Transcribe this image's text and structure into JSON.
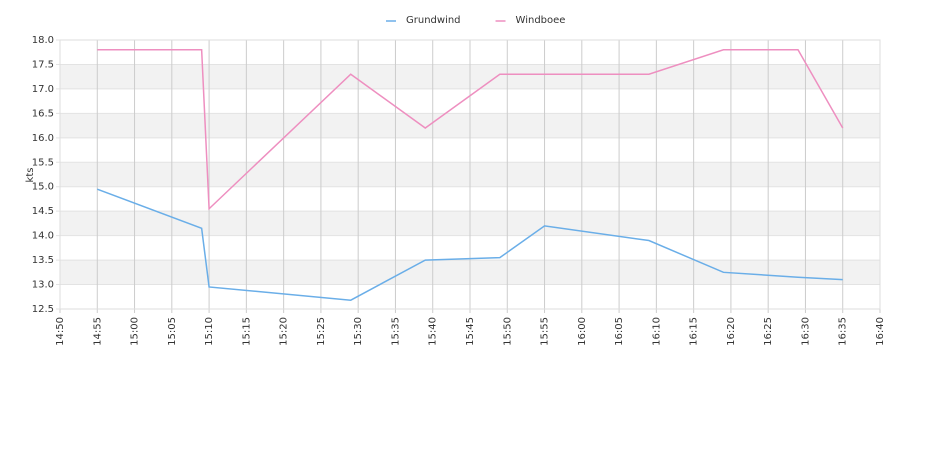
{
  "chart_data": {
    "type": "line",
    "y_label": "kts",
    "x": [
      "14:55",
      "15:09",
      "15:10",
      "15:29",
      "15:39",
      "15:49",
      "15:55",
      "16:09",
      "16:19",
      "16:29",
      "16:35"
    ],
    "series": [
      {
        "name": "Grundwind",
        "color": "#6aaee8",
        "values": [
          14.95,
          14.15,
          12.95,
          12.68,
          13.5,
          13.55,
          14.2,
          13.9,
          13.25,
          13.15,
          13.1
        ]
      },
      {
        "name": "Windboee",
        "color": "#ee8fc0",
        "values": [
          17.8,
          17.8,
          14.55,
          17.3,
          16.2,
          17.3,
          17.3,
          17.3,
          17.8,
          17.8,
          16.2
        ]
      }
    ],
    "xlim": [
      "14:50",
      "16:40"
    ],
    "xticks": [
      "14:50",
      "14:55",
      "15:00",
      "15:05",
      "15:10",
      "15:15",
      "15:20",
      "15:25",
      "15:30",
      "15:35",
      "15:40",
      "15:45",
      "15:50",
      "15:55",
      "16:00",
      "16:05",
      "16:10",
      "16:15",
      "16:20",
      "16:25",
      "16:30",
      "16:35",
      "16:40"
    ],
    "ylim": [
      12.5,
      18
    ],
    "yticks": [
      12.5,
      {
        "value": 13,
        "label": "13.0"
      },
      13.5,
      {
        "value": 14,
        "label": "14.0"
      },
      14.5,
      {
        "value": 15,
        "label": "15.0"
      },
      15.5,
      {
        "value": 16,
        "label": "16.0"
      },
      16.5,
      {
        "value": 17,
        "label": "17.0"
      },
      17.5,
      {
        "value": 18,
        "label": "18.0"
      }
    ],
    "grid": true,
    "legend": "top"
  }
}
